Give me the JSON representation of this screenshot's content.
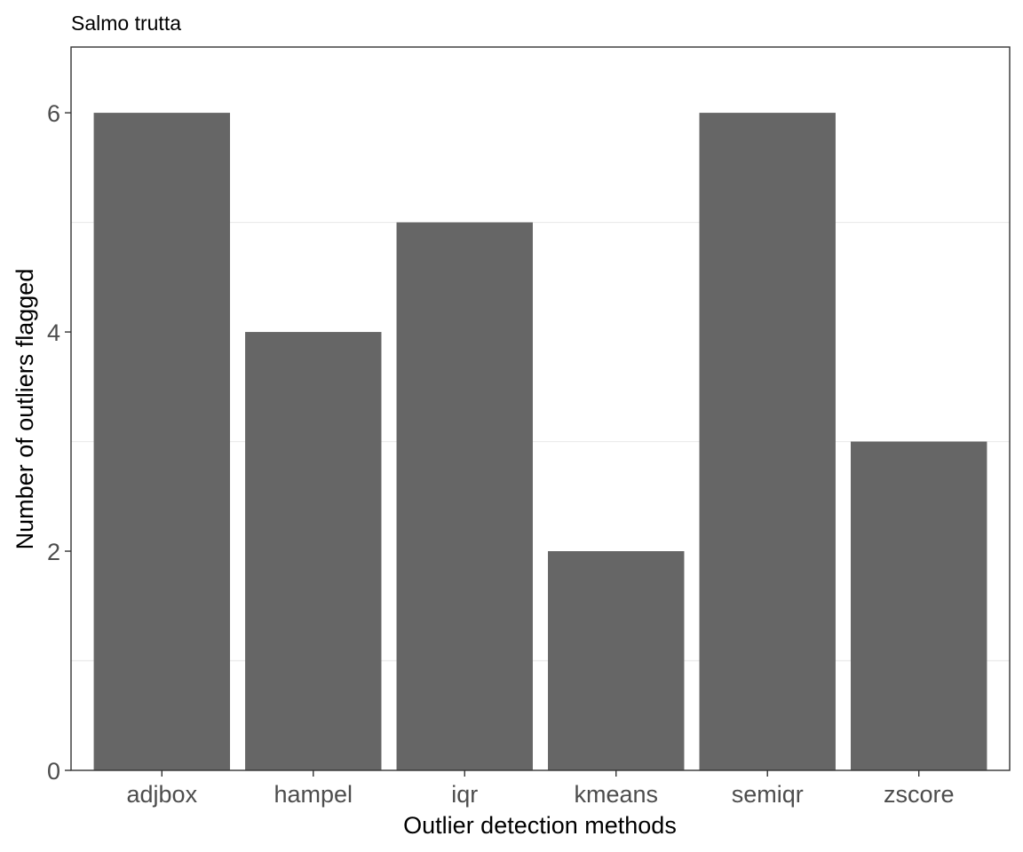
{
  "chart_data": {
    "type": "bar",
    "title": "Salmo trutta",
    "xlabel": "Outlier detection methods",
    "ylabel": "Number of outliers flagged",
    "categories": [
      "adjbox",
      "hampel",
      "iqr",
      "kmeans",
      "semiqr",
      "zscore"
    ],
    "values": [
      6,
      4,
      5,
      2,
      6,
      3
    ],
    "ylim": [
      0,
      6.6
    ],
    "yticks": [
      0,
      2,
      4,
      6
    ],
    "ytick_labels": [
      "0",
      "2",
      "4",
      "6"
    ],
    "grid": true,
    "legend": "none"
  },
  "colors": {
    "bar": "#666666",
    "panel_border": "#333333",
    "grid_minor": "#ebebeb",
    "tick_text": "#4d4d4d"
  }
}
